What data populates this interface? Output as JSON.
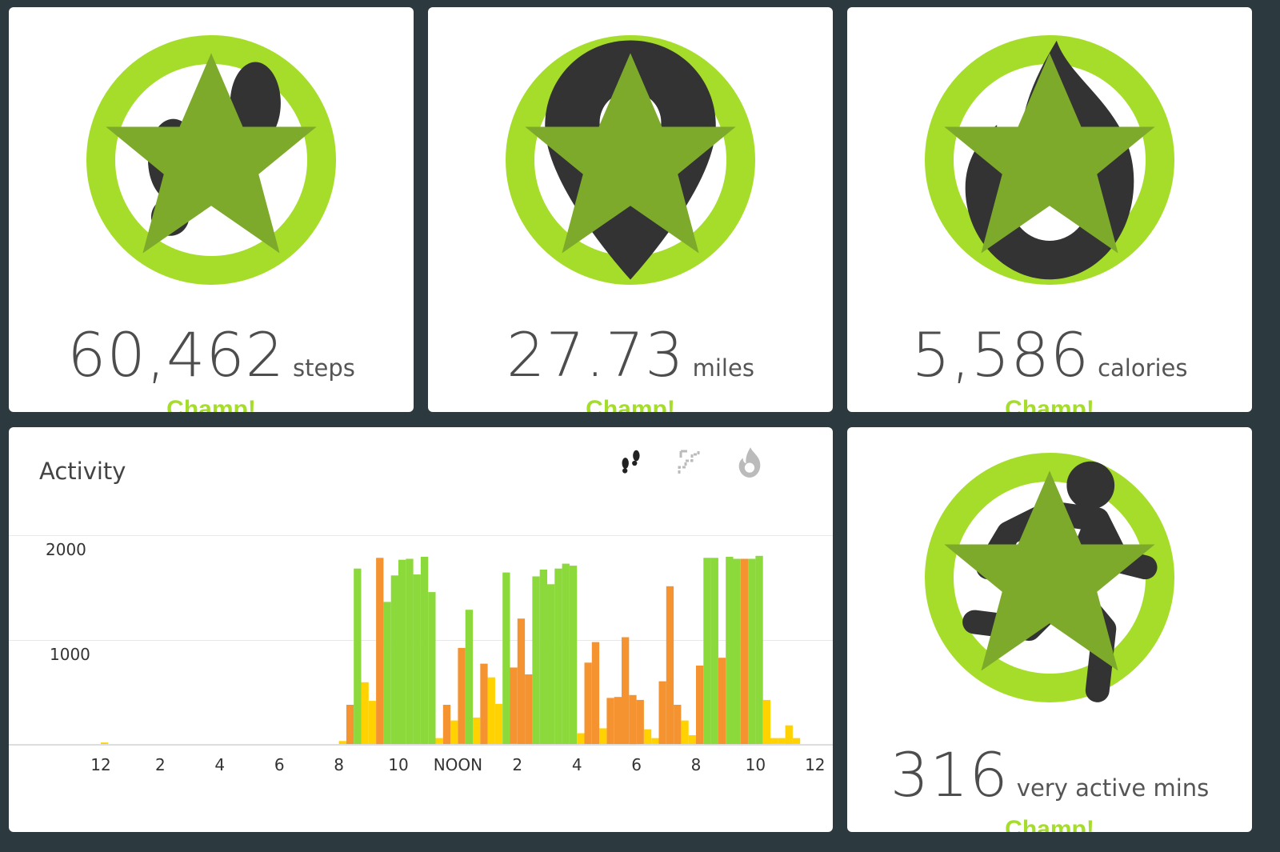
{
  "colors": {
    "ring": "#a6dd2a",
    "ring_dark": "#8cc525",
    "star": "#7daa2b",
    "champ": "#a6dd2a",
    "bar_green": "#8bd93a",
    "bar_orange": "#f59331",
    "bar_yellow": "#ffd200",
    "background": "#2c3a40"
  },
  "tiles": {
    "steps": {
      "icon": "footprints-icon",
      "value": "60,462",
      "unit": "steps",
      "status": "Champ!",
      "progress": 1.0
    },
    "distance": {
      "icon": "location-pin-icon",
      "value": "27.73",
      "unit": "miles",
      "status": "Champ!",
      "progress": 1.0
    },
    "calories": {
      "icon": "flame-icon",
      "value": "5,586",
      "unit": "calories",
      "status": "Champ!",
      "progress": 1.0
    },
    "active": {
      "icon": "running-person-icon",
      "value": "316",
      "unit": "very active mins",
      "status": "Champ!",
      "progress": 1.0
    }
  },
  "activity": {
    "title": "Activity",
    "metric_icons": [
      {
        "name": "footprints-icon",
        "selected": true
      },
      {
        "name": "stairs-icon",
        "selected": false
      },
      {
        "name": "flame-icon",
        "selected": false
      }
    ]
  },
  "chart_data": {
    "type": "bar",
    "ylim": [
      0,
      2300
    ],
    "yticks": [
      "2000",
      "1000"
    ],
    "ytick_values": [
      2000,
      1000
    ],
    "xtick_labels": [
      "12",
      "2",
      "4",
      "6",
      "8",
      "10",
      "NOON",
      "2",
      "4",
      "6",
      "8",
      "10",
      "12"
    ],
    "x_unit": "hour of day (0-24, 15-min bins)",
    "bars": [
      [
        0.0,
        15,
        "y"
      ],
      [
        8.0,
        30,
        "y"
      ],
      [
        8.25,
        400,
        "o"
      ],
      [
        8.5,
        1790,
        "g"
      ],
      [
        8.75,
        630,
        "y"
      ],
      [
        9.0,
        440,
        "y"
      ],
      [
        9.25,
        1900,
        "o"
      ],
      [
        9.5,
        1450,
        "g"
      ],
      [
        9.75,
        1720,
        "g"
      ],
      [
        10.0,
        1880,
        "g"
      ],
      [
        10.25,
        1890,
        "g"
      ],
      [
        10.5,
        1730,
        "g"
      ],
      [
        10.75,
        1910,
        "g"
      ],
      [
        11.0,
        1550,
        "g"
      ],
      [
        11.25,
        60,
        "y"
      ],
      [
        11.5,
        400,
        "o"
      ],
      [
        11.75,
        240,
        "y"
      ],
      [
        12.0,
        980,
        "o"
      ],
      [
        12.25,
        1370,
        "g"
      ],
      [
        12.5,
        270,
        "y"
      ],
      [
        12.75,
        820,
        "o"
      ],
      [
        13.0,
        680,
        "y"
      ],
      [
        13.25,
        410,
        "y"
      ],
      [
        13.5,
        1750,
        "g"
      ],
      [
        13.75,
        780,
        "o"
      ],
      [
        14.0,
        1280,
        "o"
      ],
      [
        14.25,
        710,
        "o"
      ],
      [
        14.5,
        1710,
        "g"
      ],
      [
        14.75,
        1780,
        "g"
      ],
      [
        15.0,
        1630,
        "g"
      ],
      [
        15.25,
        1790,
        "g"
      ],
      [
        15.5,
        1840,
        "g"
      ],
      [
        15.75,
        1820,
        "g"
      ],
      [
        16.0,
        110,
        "y"
      ],
      [
        16.25,
        830,
        "o"
      ],
      [
        16.5,
        1040,
        "o"
      ],
      [
        16.75,
        160,
        "y"
      ],
      [
        17.0,
        470,
        "o"
      ],
      [
        17.25,
        480,
        "o"
      ],
      [
        17.5,
        1090,
        "o"
      ],
      [
        17.75,
        500,
        "o"
      ],
      [
        18.0,
        450,
        "o"
      ],
      [
        18.25,
        150,
        "y"
      ],
      [
        18.5,
        60,
        "y"
      ],
      [
        18.75,
        640,
        "o"
      ],
      [
        19.0,
        1610,
        "o"
      ],
      [
        19.25,
        400,
        "o"
      ],
      [
        19.5,
        240,
        "y"
      ],
      [
        19.75,
        90,
        "y"
      ],
      [
        20.0,
        800,
        "o"
      ],
      [
        20.25,
        1900,
        "g"
      ],
      [
        20.5,
        1900,
        "g"
      ],
      [
        20.75,
        880,
        "o"
      ],
      [
        21.0,
        1910,
        "g"
      ],
      [
        21.25,
        1890,
        "g"
      ],
      [
        21.5,
        1890,
        "o"
      ],
      [
        21.75,
        1890,
        "g"
      ],
      [
        22.0,
        1920,
        "g"
      ],
      [
        22.25,
        450,
        "y"
      ],
      [
        22.5,
        60,
        "y"
      ],
      [
        22.75,
        60,
        "y"
      ],
      [
        23.0,
        190,
        "y"
      ],
      [
        23.25,
        60,
        "y"
      ]
    ]
  }
}
